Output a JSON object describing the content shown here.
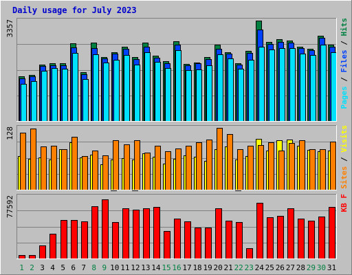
{
  "chart_data": [
    {
      "type": "bar",
      "title": "Daily usage for July 2023",
      "ymax_label": "3357",
      "ylim": [
        0,
        3357
      ],
      "grid": true,
      "categories": [
        "1",
        "2",
        "3",
        "4",
        "5",
        "6",
        "7",
        "8",
        "9",
        "10",
        "11",
        "12",
        "13",
        "14",
        "15",
        "16",
        "17",
        "18",
        "19",
        "20",
        "21",
        "22",
        "23",
        "24",
        "25",
        "26",
        "27",
        "28",
        "29",
        "30",
        "31"
      ],
      "series": [
        {
          "name": "Hits",
          "color": "#008040",
          "values": [
            1500,
            1550,
            1900,
            1950,
            1930,
            2600,
            1650,
            2620,
            2150,
            2300,
            2500,
            2150,
            2630,
            2200,
            2000,
            2680,
            1920,
            1970,
            2150,
            2550,
            2310,
            1950,
            2360,
            3357,
            2650,
            2730,
            2700,
            2500,
            2420,
            2850,
            2550
          ]
        },
        {
          "name": "Files",
          "color": "#0040ff",
          "values": [
            1450,
            1500,
            1850,
            1880,
            1880,
            2470,
            1580,
            2450,
            2100,
            2260,
            2420,
            2080,
            2500,
            2130,
            1940,
            2560,
            1880,
            1930,
            2080,
            2420,
            2250,
            1890,
            2280,
            3050,
            2580,
            2650,
            2620,
            2450,
            2370,
            2780,
            2480
          ]
        },
        {
          "name": "Pages",
          "color": "#00e0ff",
          "values": [
            1250,
            1350,
            1700,
            1780,
            1750,
            2280,
            1420,
            2230,
            1960,
            2060,
            2220,
            1900,
            2310,
            1990,
            1790,
            2380,
            1720,
            1740,
            1880,
            2230,
            2100,
            1750,
            2060,
            2480,
            2400,
            2450,
            2450,
            2250,
            2220,
            2560,
            2300
          ]
        }
      ],
      "side_labels": [
        "Pages",
        "Files",
        "Hits"
      ]
    },
    {
      "type": "bar",
      "ymax_label": "128",
      "ylim": [
        0,
        128
      ],
      "grid": true,
      "categories": [
        "1",
        "2",
        "3",
        "4",
        "5",
        "6",
        "7",
        "8",
        "9",
        "10",
        "11",
        "12",
        "13",
        "14",
        "15",
        "16",
        "17",
        "18",
        "19",
        "20",
        "21",
        "22",
        "23",
        "24",
        "25",
        "26",
        "27",
        "28",
        "29",
        "30",
        "31"
      ],
      "series": [
        {
          "name": "Visits",
          "color": "#ffff00",
          "values": [
            70,
            65,
            67,
            63,
            84,
            98,
            68,
            73,
            53,
            64,
            66,
            64,
            76,
            69,
            55,
            65,
            72,
            69,
            60,
            84,
            90,
            64,
            71,
            106,
            82,
            102,
            104,
            92,
            83,
            80,
            81
          ]
        },
        {
          "name": "Sites",
          "color": "#ff8000",
          "values": [
            118,
            127,
            90,
            92,
            85,
            110,
            71,
            82,
            72,
            103,
            94,
            103,
            78,
            92,
            80,
            86,
            91,
            98,
            104,
            128,
            116,
            85,
            92,
            93,
            98,
            81,
            97,
            103,
            85,
            85,
            100
          ]
        }
      ],
      "side_labels": [
        "Sites",
        "Visits"
      ]
    },
    {
      "type": "bar",
      "ymax_label": "77592",
      "ylim": [
        0,
        77592
      ],
      "grid": true,
      "categories": [
        "1",
        "2",
        "3",
        "4",
        "5",
        "6",
        "7",
        "8",
        "9",
        "10",
        "11",
        "12",
        "13",
        "14",
        "15",
        "16",
        "17",
        "18",
        "19",
        "20",
        "21",
        "22",
        "23",
        "24",
        "25",
        "26",
        "27",
        "28",
        "29",
        "30",
        "31"
      ],
      "series": [
        {
          "name": "KB F",
          "color": "#ff0000",
          "values": [
            5000,
            5500,
            17000,
            31500,
            48500,
            49000,
            47200,
            65800,
            74000,
            46000,
            62800,
            61500,
            63200,
            65000,
            35000,
            50000,
            46800,
            39500,
            39500,
            63200,
            47700,
            46200,
            13500,
            69500,
            52000,
            53500,
            63200,
            50600,
            47500,
            53000,
            64500
          ]
        }
      ],
      "side_labels": [
        "KB F"
      ]
    }
  ],
  "colors": {
    "background": "#c0c0c0",
    "plot": "#c0c0c0",
    "grid": "#808080",
    "hits": "#008040",
    "files": "#0040ff",
    "pages": "#00e0ff",
    "visits": "#ffff00",
    "sites": "#ff8000",
    "kbytes": "#ff0000",
    "weekend": "#008040",
    "weekday": "#000000"
  },
  "weekend_days": [
    "1",
    "2",
    "8",
    "9",
    "15",
    "16",
    "22",
    "23",
    "29",
    "30"
  ]
}
